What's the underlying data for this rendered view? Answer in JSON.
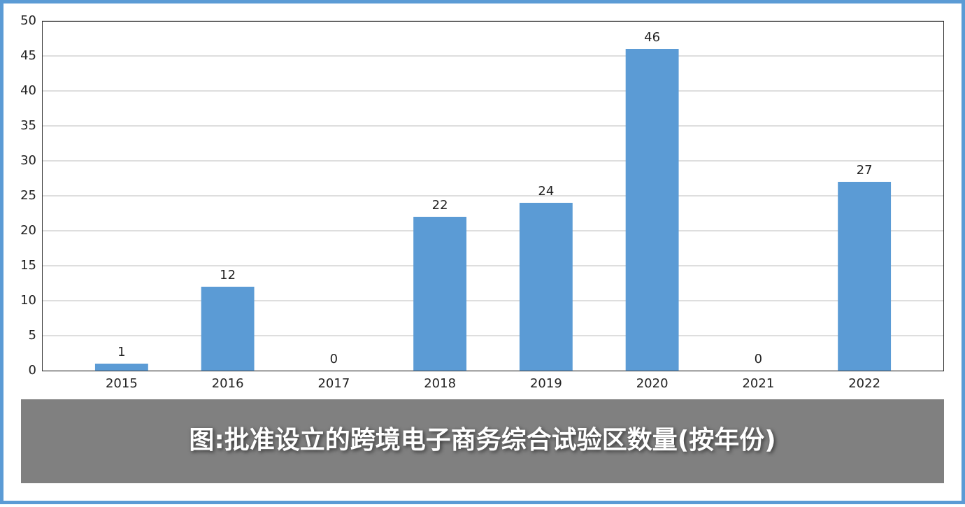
{
  "chart_data": {
    "type": "bar",
    "title": "图:批准设立的跨境电子商务综合试验区数量(按年份)",
    "categories": [
      "2015",
      "2016",
      "2017",
      "2018",
      "2019",
      "2020",
      "2021",
      "2022"
    ],
    "values": [
      1,
      12,
      0,
      22,
      24,
      46,
      0,
      27
    ],
    "color": "#5b9bd5",
    "ylim": [
      0,
      50
    ],
    "yticks": [
      0,
      5,
      10,
      15,
      20,
      25,
      30,
      35,
      40,
      45,
      50
    ],
    "grid": true
  }
}
